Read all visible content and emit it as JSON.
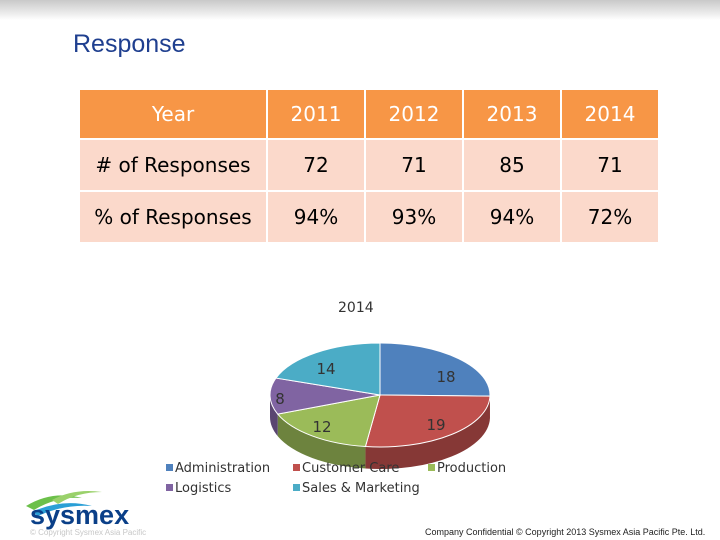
{
  "slide": {
    "title": "Response",
    "footer": "Company Confidential © Copyright 2013 Sysmex Asia Pacific Pte. Ltd.",
    "logo_text": "sysmex",
    "faint_text": "© Copyright Sysmex Asia Pacific"
  },
  "table": {
    "header": [
      "Year",
      "2011",
      "2012",
      "2013",
      "2014"
    ],
    "rows": [
      [
        "# of Responses",
        "72",
        "71",
        "85",
        "71"
      ],
      [
        "% of Responses",
        "94%",
        "93%",
        "94%",
        "72%"
      ]
    ]
  },
  "chart_data": {
    "type": "pie",
    "title": "2014",
    "legend_position": "bottom",
    "slices": [
      {
        "name": "Administration",
        "value": 18,
        "color": "#4f81bd"
      },
      {
        "name": "Customer Care",
        "value": 19,
        "color": "#c0504d"
      },
      {
        "name": "Production",
        "value": 12,
        "color": "#9bbb59"
      },
      {
        "name": "Logistics",
        "value": 8,
        "color": "#8064a2"
      },
      {
        "name": "Sales & Marketing",
        "value": 14,
        "color": "#4bacc6"
      }
    ]
  }
}
